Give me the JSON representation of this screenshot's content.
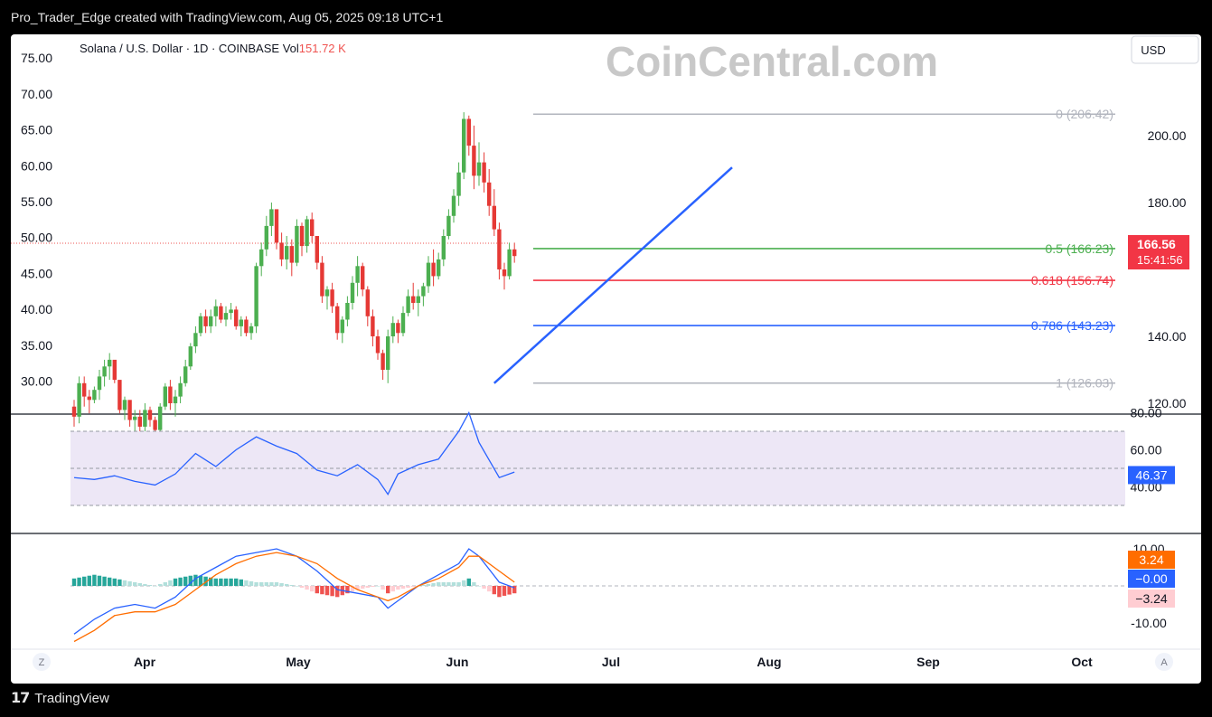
{
  "header": {
    "caption": "Pro_Trader_Edge created with TradingView.com, Aug 05, 2025 09:18 UTC+1"
  },
  "footer": {
    "brand": "TradingView",
    "logo_icon": "tradingview-logo-icon"
  },
  "watermark": "CoinCentral.com",
  "legend": {
    "symbol": "Solana / U.S. Dollar · 1D · COINBASE",
    "vol_label": "Vol",
    "vol_value": "151.72 K"
  },
  "currency_button": "USD",
  "price_badge": {
    "price": "166.56",
    "countdown": "15:41:56"
  },
  "controls": {
    "left": "Z",
    "right": "A"
  },
  "colors": {
    "up": "#26a69a",
    "down": "#ef5350",
    "candle_up": "#4caf50",
    "candle_down": "#e53935",
    "trend": "#2962ff",
    "rsi": "#2962ff",
    "macd": "#2962ff",
    "signal": "#ff6d00"
  },
  "chart_data": [
    {
      "type": "candlestick",
      "title": "Solana / U.S. Dollar · 1D · COINBASE",
      "x_labels": [
        "Apr",
        "May",
        "Jun",
        "Jul",
        "Aug",
        "Sep",
        "Oct"
      ],
      "right_axis": {
        "ticks": [
          120,
          140,
          160,
          180,
          200,
          220
        ],
        "labels": [
          "120.00",
          "140.00",
          "",
          "180.00",
          "200.00",
          ""
        ]
      },
      "left_axis": {
        "ticks": [
          30,
          35,
          40,
          45,
          50,
          55,
          60,
          65,
          70,
          75
        ],
        "labels": [
          "30.00",
          "35.00",
          "40.00",
          "45.00",
          "50.00",
          "55.00",
          "60.00",
          "65.00",
          "70.00",
          "75.00"
        ]
      },
      "fib_levels": [
        {
          "ratio": "0",
          "price": 206.42,
          "label": "0 (206.42)",
          "color": "#b2b5be"
        },
        {
          "ratio": "0.5",
          "price": 166.23,
          "label": "0.5 (166.23)",
          "color": "#4caf50"
        },
        {
          "ratio": "0.618",
          "price": 156.74,
          "label": "0.618 (156.74)",
          "color": "#f23645"
        },
        {
          "ratio": "0.786",
          "price": 143.23,
          "label": "0.786 (143.23)",
          "color": "#2962ff"
        },
        {
          "ratio": "1",
          "price": 126.03,
          "label": "1 (126.03)",
          "color": "#b2b5be"
        }
      ],
      "trendline": {
        "from": [
          83,
          126.0
        ],
        "to": [
          130,
          190.5
        ]
      },
      "candles_ohlc": [
        [
          0,
          119,
          121,
          113,
          116
        ],
        [
          1,
          116,
          128,
          114,
          126
        ],
        [
          2,
          126,
          128,
          119,
          122
        ],
        [
          3,
          122,
          124,
          117,
          121
        ],
        [
          4,
          121,
          125,
          120,
          124
        ],
        [
          5,
          124,
          130,
          121,
          128
        ],
        [
          6,
          128,
          133,
          125,
          131
        ],
        [
          7,
          131,
          135,
          127,
          133
        ],
        [
          8,
          133,
          131,
          126,
          127
        ],
        [
          9,
          127,
          124,
          117,
          118
        ],
        [
          10,
          118,
          122,
          115,
          121
        ],
        [
          11,
          121,
          119,
          113,
          115
        ],
        [
          12,
          115,
          118,
          111,
          116
        ],
        [
          13,
          116,
          118,
          111,
          113
        ],
        [
          14,
          113,
          120,
          110,
          118
        ],
        [
          15,
          118,
          119,
          113,
          115
        ],
        [
          16,
          115,
          116,
          110,
          112
        ],
        [
          17,
          112,
          120,
          111,
          119
        ],
        [
          18,
          119,
          126,
          118,
          125
        ],
        [
          19,
          125,
          127,
          118,
          120
        ],
        [
          20,
          120,
          124,
          116,
          122
        ],
        [
          21,
          122,
          128,
          120,
          126
        ],
        [
          22,
          126,
          133,
          125,
          131
        ],
        [
          23,
          131,
          138,
          130,
          137
        ],
        [
          24,
          137,
          143,
          135,
          141
        ],
        [
          25,
          141,
          147,
          140,
          146
        ],
        [
          26,
          146,
          148,
          141,
          143
        ],
        [
          27,
          143,
          148,
          141,
          146
        ],
        [
          28,
          146,
          151,
          143,
          149
        ],
        [
          29,
          149,
          150,
          144,
          145
        ],
        [
          30,
          145,
          149,
          143,
          147
        ],
        [
          31,
          147,
          150,
          145,
          148
        ],
        [
          32,
          148,
          149,
          142,
          143
        ],
        [
          33,
          143,
          146,
          140,
          145
        ],
        [
          34,
          145,
          146,
          140,
          141
        ],
        [
          35,
          141,
          144,
          139,
          143
        ],
        [
          36,
          143,
          162,
          141,
          161
        ],
        [
          37,
          161,
          168,
          158,
          166
        ],
        [
          38,
          166,
          176,
          164,
          173
        ],
        [
          39,
          173,
          180,
          170,
          178
        ],
        [
          40,
          178,
          177,
          166,
          168
        ],
        [
          41,
          168,
          171,
          161,
          163
        ],
        [
          42,
          163,
          170,
          160,
          167
        ],
        [
          43,
          167,
          169,
          158,
          162
        ],
        [
          44,
          162,
          175,
          161,
          173
        ],
        [
          45,
          173,
          174,
          164,
          167
        ],
        [
          46,
          167,
          176,
          165,
          175
        ],
        [
          47,
          175,
          177,
          168,
          170
        ],
        [
          48,
          170,
          169,
          160,
          162
        ],
        [
          49,
          162,
          164,
          150,
          152
        ],
        [
          50,
          152,
          155,
          148,
          154
        ],
        [
          51,
          154,
          156,
          147,
          149
        ],
        [
          52,
          149,
          150,
          139,
          141
        ],
        [
          53,
          141,
          146,
          138,
          145
        ],
        [
          54,
          145,
          152,
          143,
          150
        ],
        [
          55,
          150,
          158,
          148,
          156
        ],
        [
          56,
          156,
          164,
          152,
          161
        ],
        [
          57,
          161,
          162,
          152,
          154
        ],
        [
          58,
          154,
          155,
          143,
          146
        ],
        [
          59,
          146,
          148,
          137,
          140
        ],
        [
          60,
          140,
          142,
          133,
          135
        ],
        [
          61,
          135,
          136,
          127,
          130
        ],
        [
          62,
          130,
          142,
          126,
          140
        ],
        [
          63,
          140,
          146,
          138,
          144
        ],
        [
          64,
          144,
          145,
          138,
          141
        ],
        [
          65,
          141,
          149,
          140,
          147
        ],
        [
          66,
          147,
          154,
          146,
          152
        ],
        [
          67,
          152,
          156,
          148,
          150
        ],
        [
          68,
          150,
          154,
          146,
          152
        ],
        [
          69,
          152,
          156,
          149,
          155
        ],
        [
          70,
          155,
          164,
          153,
          162
        ],
        [
          71,
          162,
          166,
          155,
          158
        ],
        [
          72,
          158,
          165,
          157,
          163
        ],
        [
          73,
          163,
          172,
          161,
          170
        ],
        [
          74,
          170,
          178,
          169,
          176
        ],
        [
          75,
          176,
          184,
          174,
          182
        ],
        [
          76,
          182,
          192,
          179,
          189
        ],
        [
          77,
          189,
          207,
          187,
          205
        ],
        [
          78,
          205,
          206,
          194,
          197
        ],
        [
          79,
          197,
          203,
          184,
          188
        ],
        [
          80,
          188,
          198,
          185,
          192
        ],
        [
          81,
          192,
          195,
          183,
          186
        ],
        [
          82,
          186,
          190,
          176,
          179
        ],
        [
          83,
          179,
          184,
          170,
          172
        ],
        [
          84,
          172,
          174,
          157,
          160
        ],
        [
          85,
          160,
          162,
          154,
          158
        ],
        [
          86,
          158,
          168,
          157,
          166
        ],
        [
          87,
          166,
          168,
          162,
          164
        ]
      ],
      "volume": "151.72 K",
      "last_price": 166.56
    },
    {
      "type": "line",
      "title": "RSI",
      "y_ticks": [
        "40.00",
        "60.00",
        "80.00"
      ],
      "bands": [
        30,
        50,
        70
      ],
      "x": [
        0,
        4,
        8,
        12,
        16,
        20,
        24,
        28,
        32,
        36,
        40,
        44,
        48,
        52,
        56,
        60,
        62,
        64,
        68,
        72,
        76,
        78,
        80,
        84,
        87
      ],
      "values": [
        45,
        44,
        46,
        43,
        41,
        47,
        58,
        51,
        60,
        67,
        62,
        58,
        49,
        46,
        52,
        44,
        36,
        47,
        52,
        55,
        70,
        80,
        64,
        45,
        48
      ],
      "last_value": "46.37"
    },
    {
      "type": "macd",
      "title": "MACD",
      "y_ticks": [
        "10.00",
        "-10.00"
      ],
      "x": [
        0,
        4,
        8,
        12,
        16,
        20,
        24,
        28,
        32,
        36,
        40,
        44,
        48,
        52,
        56,
        60,
        62,
        64,
        68,
        72,
        76,
        78,
        80,
        84,
        87
      ],
      "macd": [
        -13,
        -9,
        -6,
        -5,
        -6,
        -3,
        2,
        5,
        8,
        9,
        10,
        8,
        4,
        -1,
        -2,
        -3,
        -6,
        -4,
        0,
        3,
        6,
        10,
        8,
        1,
        -0.5
      ],
      "signal": [
        -15,
        -12,
        -8,
        -7,
        -7,
        -5,
        -1,
        3,
        6,
        8,
        9,
        8,
        6,
        2,
        -1,
        -3,
        -4,
        -3,
        0,
        2,
        5,
        8,
        8,
        4,
        1
      ],
      "histogram": [
        2,
        3,
        2,
        1,
        0,
        2,
        3,
        2,
        2,
        1,
        1,
        0,
        -2,
        -3,
        -1,
        0,
        -2,
        -1,
        0,
        1,
        1,
        2,
        0,
        -3,
        -2
      ],
      "badges": [
        "3.24",
        "−0.00",
        "−3.24"
      ]
    }
  ]
}
